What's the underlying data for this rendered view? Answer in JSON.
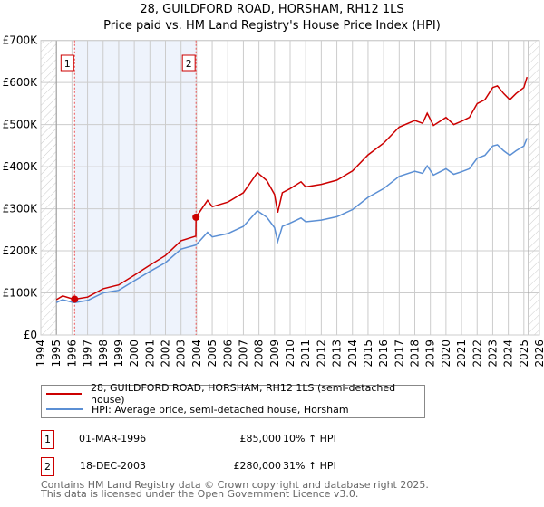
{
  "title": "28, GUILDFORD ROAD, HORSHAM, RH12 1LS",
  "subtitle": "Price paid vs. HM Land Registry's House Price Index (HPI)",
  "colors": {
    "property": "#cc0000",
    "hpi": "#5b8fd4",
    "band": "#eef3fc"
  },
  "chart_data": {
    "type": "line",
    "xlim": [
      1994,
      2026
    ],
    "ylim": [
      0,
      700000
    ],
    "x_ticks": [
      "1994",
      "1995",
      "1996",
      "1997",
      "1998",
      "1999",
      "2000",
      "2001",
      "2002",
      "2003",
      "2004",
      "2005",
      "2006",
      "2007",
      "2008",
      "2009",
      "2010",
      "2011",
      "2012",
      "2013",
      "2014",
      "2015",
      "2016",
      "2017",
      "2018",
      "2019",
      "2020",
      "2021",
      "2022",
      "2023",
      "2024",
      "2025",
      "2026"
    ],
    "y_ticks": [
      {
        "v": 0,
        "label": "£0"
      },
      {
        "v": 100000,
        "label": "£100K"
      },
      {
        "v": 200000,
        "label": "£200K"
      },
      {
        "v": 300000,
        "label": "£300K"
      },
      {
        "v": 400000,
        "label": "£400K"
      },
      {
        "v": 500000,
        "label": "£500K"
      },
      {
        "v": 600000,
        "label": "£600K"
      },
      {
        "v": 700000,
        "label": "£700K"
      }
    ],
    "grid": true,
    "hatched_before": 1995,
    "hatched_after": 2025.3,
    "shaded_range": [
      1996.17,
      2003.96
    ],
    "series": [
      {
        "name": "28, GUILDFORD ROAD, HORSHAM, RH12 1LS (semi-detached house)",
        "color": "#cc0000",
        "x": [
          1995,
          1995.4,
          1996,
          1996.17,
          1997,
          1998,
          1999,
          2000,
          2001,
          2002,
          2003,
          2003.95,
          2003.96,
          2004.7,
          2005,
          2006,
          2007,
          2007.9,
          2008.5,
          2009,
          2009.2,
          2009.5,
          2010,
          2010.7,
          2011,
          2012,
          2013,
          2014,
          2015,
          2016,
          2017,
          2018,
          2018.5,
          2018.8,
          2019.2,
          2020,
          2020.5,
          2021,
          2021.5,
          2022,
          2022.5,
          2023,
          2023.3,
          2023.7,
          2024.1,
          2024.5,
          2025,
          2025.2
        ],
        "y": [
          84000,
          93000,
          86000,
          85000,
          90000,
          110000,
          119000,
          142000,
          166000,
          189000,
          224000,
          235000,
          280000,
          320000,
          305000,
          316000,
          338000,
          386000,
          367000,
          334000,
          291000,
          338000,
          348000,
          364000,
          352000,
          358000,
          368000,
          390000,
          428000,
          456000,
          494000,
          510000,
          503000,
          527000,
          498000,
          517000,
          500000,
          508000,
          517000,
          550000,
          559000,
          588000,
          592000,
          574000,
          559000,
          574000,
          588000,
          613000
        ]
      },
      {
        "name": "HPI: Average price, semi-detached house, Horsham",
        "color": "#5b8fd4",
        "x": [
          1995,
          1995.4,
          1996,
          1996.17,
          1997,
          1998,
          1999,
          2000,
          2001,
          2002,
          2003,
          2003.95,
          2003.96,
          2004.7,
          2005,
          2006,
          2007,
          2007.9,
          2008.5,
          2009,
          2009.2,
          2009.5,
          2010,
          2010.7,
          2011,
          2012,
          2013,
          2014,
          2015,
          2016,
          2017,
          2018,
          2018.5,
          2018.8,
          2019.2,
          2020,
          2020.5,
          2021,
          2021.5,
          2022,
          2022.5,
          2023,
          2023.3,
          2023.7,
          2024.1,
          2024.5,
          2025,
          2025.2
        ],
        "y": [
          77000,
          84000,
          78000,
          77000,
          82000,
          100000,
          106000,
          129000,
          151000,
          172000,
          204000,
          214000,
          214000,
          244000,
          233000,
          241000,
          258000,
          295000,
          280000,
          255000,
          222000,
          258000,
          266000,
          278000,
          269000,
          273000,
          281000,
          298000,
          327000,
          348000,
          377000,
          389000,
          384000,
          402000,
          380000,
          395000,
          382000,
          388000,
          395000,
          420000,
          427000,
          449000,
          452000,
          438000,
          427000,
          438000,
          449000,
          468000
        ]
      }
    ],
    "sales": [
      {
        "label": "1",
        "x": 1996.17,
        "y": 85000
      },
      {
        "label": "2",
        "x": 2003.96,
        "y": 280000
      }
    ]
  },
  "legend": {
    "property": "28, GUILDFORD ROAD, HORSHAM, RH12 1LS (semi-detached house)",
    "hpi": "HPI: Average price, semi-detached house, Horsham"
  },
  "transactions": [
    {
      "num": "1",
      "date": "01-MAR-1996",
      "price": "£85,000",
      "hpi": "10% ↑ HPI"
    },
    {
      "num": "2",
      "date": "18-DEC-2003",
      "price": "£280,000",
      "hpi": "31% ↑ HPI"
    }
  ],
  "footer": {
    "line1": "Contains HM Land Registry data © Crown copyright and database right 2025.",
    "line2": "This data is licensed under the Open Government Licence v3.0."
  }
}
